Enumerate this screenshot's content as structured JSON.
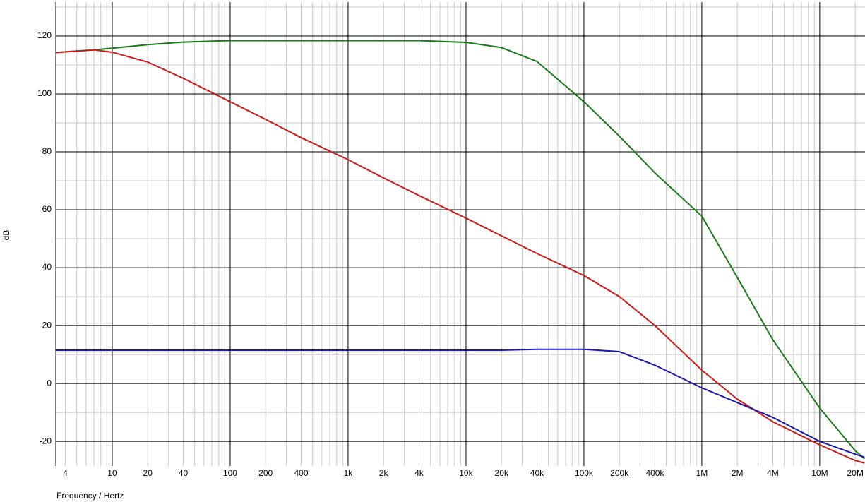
{
  "chart_data": {
    "type": "line",
    "xlabel": "Frequency / Hertz",
    "ylabel": "dB",
    "xscale": "log",
    "grid": true,
    "minor_grid": true,
    "xlim": [
      3.32,
      24200000
    ],
    "ylim": [
      -28.5,
      131.7
    ],
    "xticks": [
      4,
      10,
      20,
      40,
      100,
      200,
      400,
      {
        "value": 1000,
        "label": "1k"
      },
      {
        "value": 2000,
        "label": "2k"
      },
      {
        "value": 4000,
        "label": "4k"
      },
      {
        "value": 10000,
        "label": "10k"
      },
      {
        "value": 20000,
        "label": "20k"
      },
      {
        "value": 40000,
        "label": "40k"
      },
      {
        "value": 100000,
        "label": "100k"
      },
      {
        "value": 200000,
        "label": "200k"
      },
      {
        "value": 400000,
        "label": "400k"
      },
      {
        "value": 1000000,
        "label": "1M"
      },
      {
        "value": 2000000,
        "label": "2M"
      },
      {
        "value": 4000000,
        "label": "4M"
      },
      {
        "value": 10000000,
        "label": "10M"
      },
      {
        "value": 20000000,
        "label": "20M"
      }
    ],
    "yticks": [
      -20,
      0,
      20,
      40,
      60,
      80,
      100,
      120
    ],
    "x": [
      3.32,
      7,
      10,
      20,
      40,
      100,
      200,
      400,
      1000,
      2000,
      4000,
      10000,
      20000,
      40000,
      100000,
      200000,
      400000,
      1000000,
      2000000,
      4000000,
      10000000,
      20000000,
      24000000
    ],
    "series": [
      {
        "color": "#1a7a1a",
        "values": [
          114.3,
          115.2,
          115.8,
          117,
          117.9,
          118.4,
          118.4,
          118.4,
          118.4,
          118.4,
          118.4,
          117.8,
          116,
          111.2,
          97.3,
          85.4,
          72.7,
          57.8,
          36.6,
          15.1,
          -8.5,
          -23.2,
          -26
        ]
      },
      {
        "color": "#cc1a1a",
        "values": [
          114.3,
          115.2,
          114.4,
          111,
          105.4,
          97.3,
          91.2,
          84.9,
          77.3,
          71,
          64.9,
          57.1,
          51,
          44.9,
          37.3,
          30,
          20,
          4.6,
          -5.4,
          -13.2,
          -21.2,
          -26.6,
          -27.5
        ]
      },
      {
        "color": "#1a1aaa",
        "values": [
          11.5,
          11.5,
          11.5,
          11.5,
          11.5,
          11.5,
          11.5,
          11.5,
          11.5,
          11.5,
          11.5,
          11.5,
          11.5,
          11.8,
          11.8,
          11,
          6.3,
          -1.5,
          -6.6,
          -11.7,
          -20,
          -24.4,
          -25.5
        ]
      }
    ]
  }
}
